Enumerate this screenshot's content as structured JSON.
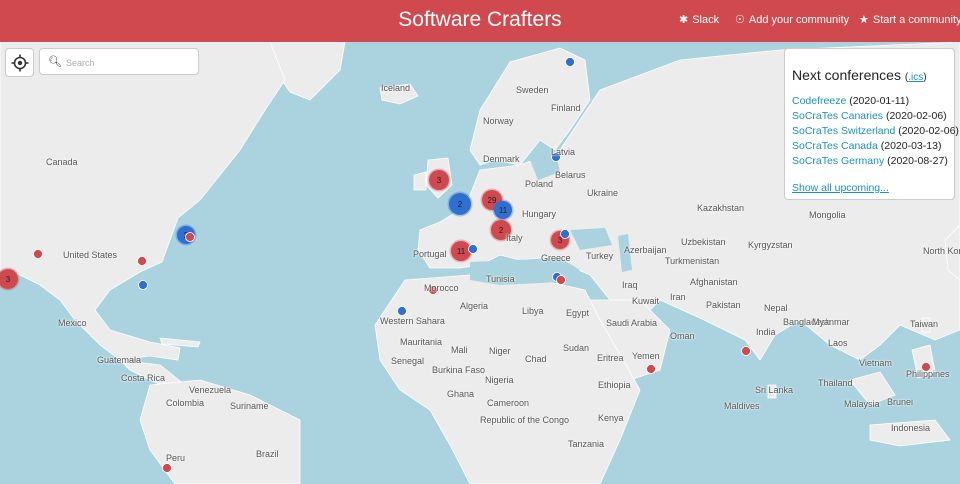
{
  "header": {
    "title": "Software Crafters",
    "slack_label": "Slack",
    "add_label": "Add your community",
    "start_label": "Start a community"
  },
  "search": {
    "placeholder": "Search"
  },
  "panel": {
    "title": "Next conferences",
    "ics_label": ".ics",
    "show_all": "Show all upcoming...",
    "conferences": [
      {
        "name": "Codefreeze",
        "date": "(2020-01-11)"
      },
      {
        "name": "SoCraTes Canaries",
        "date": "(2020-02-06)"
      },
      {
        "name": "SoCraTes Switzerland",
        "date": "(2020-02-06)"
      },
      {
        "name": "SoCraTes Canada",
        "date": "(2020-03-13)"
      },
      {
        "name": "SoCraTes Germany",
        "date": "(2020-08-27)"
      }
    ]
  },
  "map_labels": [
    "Iceland",
    "Sweden",
    "Finland",
    "Norway",
    "Canada",
    "Denmark",
    "Latvia",
    "Belarus",
    "Poland",
    "Ukraine",
    "Hungary",
    "Kazakhstan",
    "Mongolia",
    "Azerbaijan",
    "Uzbekistan",
    "Kyrgyzstan",
    "North Korea",
    "United States",
    "Portugal",
    "Italy",
    "Turkey",
    "Greece",
    "Turkmenistan",
    "Afghanistan",
    "Morocco",
    "Tunisia",
    "Iraq",
    "Iran",
    "Kuwait",
    "Pakistan",
    "Nepal",
    "Mexico",
    "Western Sahara",
    "Algeria",
    "Libya",
    "Egypt",
    "Saudi Arabia",
    "Oman",
    "India",
    "Bangladesh",
    "Myanmar",
    "Taiwan",
    "Mauritania",
    "Mali",
    "Niger",
    "Chad",
    "Sudan",
    "Eritrea",
    "Yemen",
    "Laos",
    "Senegal",
    "Burkina Faso",
    "Guatemala",
    "Vietnam",
    "Philippines",
    "Nigeria",
    "Costa Rica",
    "Venezuela",
    "Suriname",
    "Ethiopia",
    "Sri Lanka",
    "Thailand",
    "Colombia",
    "Ghana",
    "Cameroon",
    "Maldives",
    "Malaysia",
    "Brunei",
    "Republic of the Congo",
    "Kenya",
    "Indonesia",
    "Peru",
    "Brazil",
    "Tanzania"
  ],
  "markers": [
    {
      "label": "3",
      "color": "#d0494f"
    },
    {
      "label": "2",
      "color": "#2f6fd1"
    },
    {
      "label": "29",
      "color": "#d0494f"
    },
    {
      "label": "11",
      "color": "#2f6fd1"
    },
    {
      "label": "2",
      "color": "#d0494f"
    },
    {
      "label": "11",
      "color": "#d0494f"
    },
    {
      "label": "3",
      "color": "#d0494f"
    },
    {
      "label": "2",
      "color": "#2f6fd1"
    },
    {
      "label": "3",
      "color": "#d0494f"
    }
  ],
  "colors": {
    "header": "#d0494f",
    "water": "#aad3df",
    "land": "#ececec",
    "red_marker": "#d0494f",
    "blue_marker": "#2f6fd1",
    "link": "#1a8fc4"
  }
}
